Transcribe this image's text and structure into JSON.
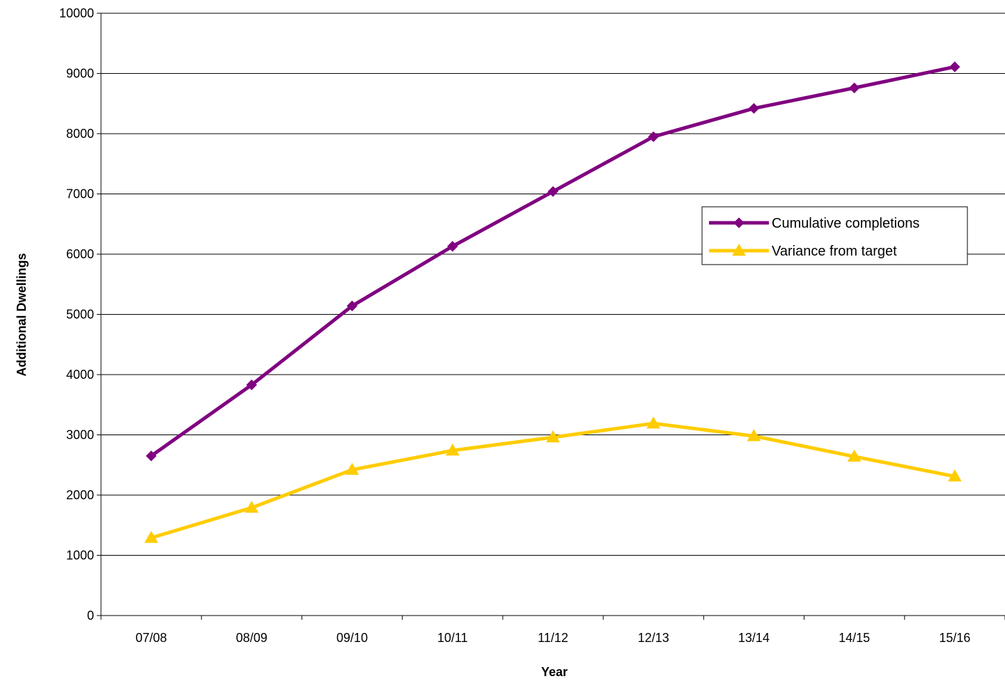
{
  "chart_data": {
    "type": "line",
    "title": "",
    "xlabel": "Year",
    "ylabel": "Additional Dwellings",
    "categories": [
      "07/08",
      "08/09",
      "09/10",
      "10/11",
      "11/12",
      "12/13",
      "13/14",
      "14/15",
      "15/16"
    ],
    "ylim": [
      0,
      10000
    ],
    "yticks": [
      0,
      1000,
      2000,
      3000,
      4000,
      5000,
      6000,
      7000,
      8000,
      9000,
      10000
    ],
    "grid": true,
    "legend_position": "right",
    "series": [
      {
        "name": "Cumulative completions",
        "color": "#800080",
        "marker": "diamond",
        "values": [
          2650,
          3830,
          5140,
          6130,
          7040,
          7950,
          8420,
          8760,
          9110
        ]
      },
      {
        "name": "Variance from target",
        "color": "#FFCC00",
        "marker": "triangle",
        "values": [
          1290,
          1790,
          2420,
          2740,
          2960,
          3190,
          2980,
          2640,
          2310
        ]
      }
    ]
  }
}
